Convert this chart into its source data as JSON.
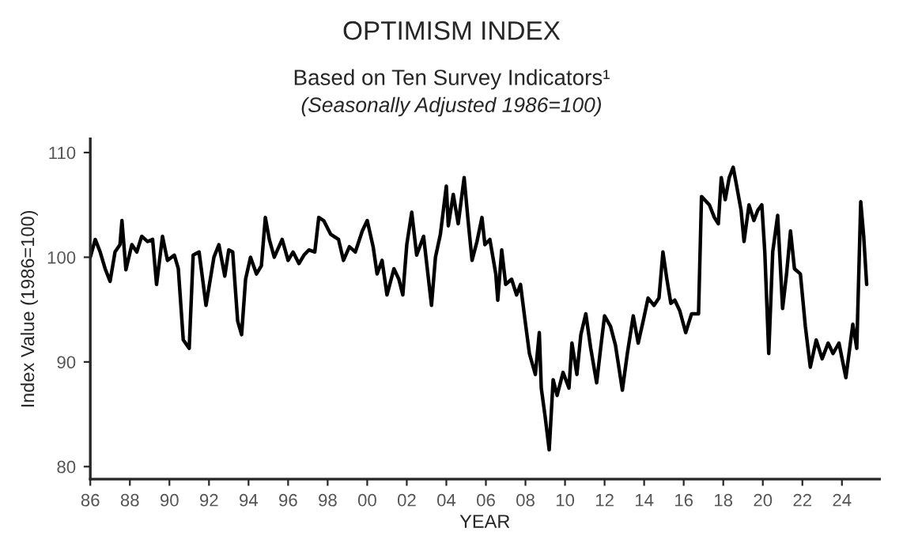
{
  "chart_data": {
    "type": "line",
    "title": "OPTIMISM INDEX",
    "subtitle": "Based on Ten Survey Indicators¹",
    "annotations": [
      "(Seasonally Adjusted 1986=100)"
    ],
    "xlabel": "YEAR",
    "ylabel": "Index Value (1986=100)",
    "series": [
      {
        "color": "#000000",
        "x": [
          1986.0,
          1986.25,
          1986.5,
          1986.75,
          1987.0,
          1987.25,
          1987.5,
          1987.6,
          1987.8,
          1988.1,
          1988.35,
          1988.6,
          1988.9,
          1989.15,
          1989.35,
          1989.65,
          1989.9,
          1990.25,
          1990.45,
          1990.7,
          1991.0,
          1991.2,
          1991.5,
          1991.85,
          1992.25,
          1992.5,
          1992.8,
          1993.0,
          1993.2,
          1993.45,
          1993.65,
          1993.85,
          1994.1,
          1994.4,
          1994.65,
          1994.85,
          1995.05,
          1995.3,
          1995.7,
          1996.0,
          1996.25,
          1996.55,
          1996.8,
          1997.05,
          1997.35,
          1997.55,
          1997.8,
          1998.15,
          1998.55,
          1998.8,
          1999.1,
          1999.4,
          1999.75,
          2000.0,
          2000.3,
          2000.5,
          2000.75,
          2001.0,
          2001.35,
          2001.6,
          2001.8,
          2002.0,
          2002.25,
          2002.5,
          2002.85,
          2003.05,
          2003.25,
          2003.45,
          2003.7,
          2004.0,
          2004.1,
          2004.35,
          2004.6,
          2004.9,
          2005.1,
          2005.3,
          2005.55,
          2005.8,
          2005.95,
          2006.2,
          2006.5,
          2006.6,
          2006.8,
          2007.0,
          2007.3,
          2007.55,
          2007.75,
          2007.95,
          2008.2,
          2008.5,
          2008.7,
          2008.8,
          2009.0,
          2009.2,
          2009.4,
          2009.6,
          2009.9,
          2010.2,
          2010.35,
          2010.6,
          2010.8,
          2011.05,
          2011.3,
          2011.6,
          2011.8,
          2012.0,
          2012.3,
          2012.55,
          2012.9,
          2013.15,
          2013.45,
          2013.7,
          2013.95,
          2014.2,
          2014.5,
          2014.75,
          2014.95,
          2015.15,
          2015.35,
          2015.55,
          2015.8,
          2016.1,
          2016.4,
          2016.75,
          2016.9,
          2017.3,
          2017.55,
          2017.75,
          2017.9,
          2018.1,
          2018.3,
          2018.5,
          2018.65,
          2018.9,
          2019.05,
          2019.3,
          2019.55,
          2019.75,
          2019.95,
          2020.1,
          2020.3,
          2020.5,
          2020.75,
          2021.0,
          2021.2,
          2021.4,
          2021.6,
          2021.9,
          2022.15,
          2022.4,
          2022.7,
          2023.0,
          2023.3,
          2023.55,
          2023.85,
          2024.2,
          2024.55,
          2024.75,
          2024.95,
          2025.1,
          2025.25
        ],
        "values": [
          100,
          101.7,
          100.5,
          98.9,
          97.7,
          100.5,
          101.2,
          103.5,
          98.8,
          101.2,
          100.5,
          102,
          101.5,
          101.7,
          97.4,
          102,
          99.7,
          100.2,
          98.9,
          92.1,
          91.3,
          100.2,
          100.5,
          95.4,
          100,
          101.2,
          98.2,
          100.7,
          100.5,
          93.9,
          92.6,
          97.9,
          100,
          98.4,
          99.2,
          103.8,
          101.7,
          100,
          101.7,
          99.7,
          100.5,
          99.4,
          100.2,
          100.7,
          100.5,
          103.8,
          103.5,
          102.2,
          101.7,
          99.7,
          101,
          100.5,
          102.5,
          103.5,
          101,
          98.4,
          99.7,
          96.4,
          98.9,
          97.9,
          96.4,
          101.2,
          104.3,
          100.2,
          102,
          98.7,
          95.4,
          100,
          102.2,
          106.8,
          103,
          106,
          103.2,
          107.6,
          103.5,
          99.7,
          101.5,
          103.8,
          101.2,
          101.7,
          98.4,
          95.9,
          100.7,
          97.4,
          97.9,
          96.4,
          97.4,
          94.4,
          90.8,
          88.8,
          92.8,
          87.5,
          84.7,
          81.6,
          88.3,
          86.8,
          89,
          87.5,
          91.8,
          88.8,
          92.6,
          94.6,
          91.3,
          88,
          91.3,
          94.4,
          93.4,
          91.6,
          87.3,
          90.8,
          94.4,
          91.8,
          93.9,
          96.1,
          95.4,
          96.1,
          100.5,
          97.9,
          95.6,
          95.9,
          94.9,
          92.8,
          94.6,
          94.6,
          105.8,
          105,
          103.8,
          103.2,
          107.6,
          105.5,
          107.6,
          108.6,
          107.1,
          104.5,
          101.5,
          105,
          103.5,
          104.5,
          105,
          100.5,
          90.8,
          100.5,
          104,
          95.1,
          98.4,
          102.5,
          98.9,
          98.4,
          93.4,
          89.5,
          92.1,
          90.3,
          91.8,
          90.8,
          91.8,
          88.5,
          93.6,
          91.3,
          105.3,
          102,
          97.4
        ]
      }
    ],
    "xlim": [
      1986,
      2025.9
    ],
    "ylim": [
      78.8,
      111.3
    ],
    "xticks": [
      {
        "value": 1986,
        "label": "86"
      },
      {
        "value": 1988,
        "label": "88"
      },
      {
        "value": 1990,
        "label": "90"
      },
      {
        "value": 1992,
        "label": "92"
      },
      {
        "value": 1994,
        "label": "94"
      },
      {
        "value": 1996,
        "label": "96"
      },
      {
        "value": 1998,
        "label": "98"
      },
      {
        "value": 2000,
        "label": "00"
      },
      {
        "value": 2002,
        "label": "02"
      },
      {
        "value": 2004,
        "label": "04"
      },
      {
        "value": 2006,
        "label": "06"
      },
      {
        "value": 2008,
        "label": "08"
      },
      {
        "value": 2010,
        "label": "10"
      },
      {
        "value": 2012,
        "label": "12"
      },
      {
        "value": 2014,
        "label": "14"
      },
      {
        "value": 2016,
        "label": "16"
      },
      {
        "value": 2018,
        "label": "18"
      },
      {
        "value": 2020,
        "label": "20"
      },
      {
        "value": 2022,
        "label": "22"
      },
      {
        "value": 2024,
        "label": "24"
      }
    ],
    "yticks": [
      80,
      90,
      100,
      110
    ],
    "grid": false,
    "legend": false,
    "marker": "none",
    "line_style": "solid"
  }
}
